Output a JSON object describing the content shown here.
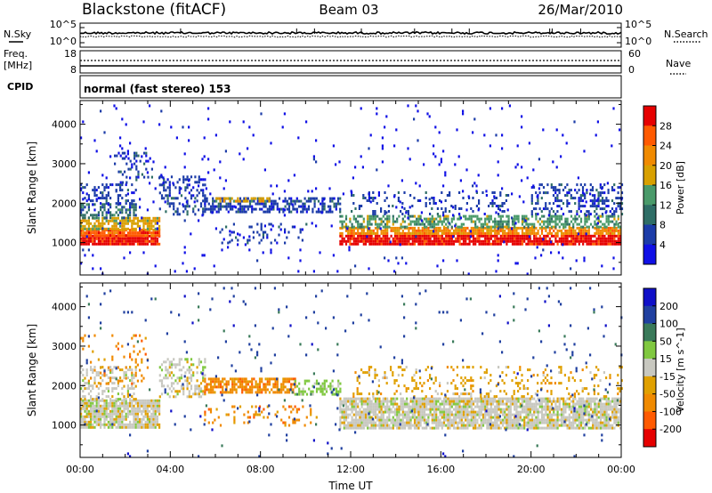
{
  "header": {
    "title": "Blackstone (fitACF)",
    "beam": "Beam 03",
    "date": "26/Mar/2010"
  },
  "status_panels": {
    "nsky": {
      "label": "N.Sky",
      "ticks": [
        "10^5",
        "10^0"
      ]
    },
    "nsearch": {
      "label": "N.Search",
      "ticks": [
        "10^5",
        "10^0"
      ]
    },
    "freq": {
      "label_line1": "Freq.",
      "label_line2": "[MHz]",
      "ticks": [
        "18",
        "8"
      ]
    },
    "nave": {
      "label": "Nave",
      "ticks": [
        "60",
        "0"
      ]
    },
    "cpid": {
      "label": "CPID",
      "value": "normal (fast stereo) 153"
    }
  },
  "chart_data": [
    {
      "type": "heatmap",
      "title": "",
      "xlabel": "Time UT",
      "ylabel": "Slant Range [km]",
      "x_ticks": [
        "00:00",
        "04:00",
        "08:00",
        "12:00",
        "16:00",
        "20:00",
        "00:00"
      ],
      "x_range_hours": [
        0,
        24
      ],
      "y_ticks": [
        1000,
        2000,
        3000,
        4000
      ],
      "ylim": [
        180,
        4600
      ],
      "colorbar": {
        "label": "Power [dB]",
        "ticks": [
          "28",
          "24",
          "20",
          "16",
          "12",
          "8",
          "4"
        ],
        "colors": [
          "#1010e6",
          "#1c3ca8",
          "#2f6e66",
          "#4a9a6a",
          "#d8a000",
          "#f08a00",
          "#ff5a00",
          "#e60000"
        ]
      },
      "bands": [
        {
          "t0": 0.0,
          "t1": 3.5,
          "r0": 950,
          "r1": 1200,
          "level": 7,
          "density": 0.95
        },
        {
          "t0": 0.0,
          "t1": 3.5,
          "r0": 1200,
          "r1": 1350,
          "level": 6,
          "density": 0.9
        },
        {
          "t0": 0.0,
          "t1": 3.5,
          "r0": 1350,
          "r1": 1650,
          "level": 4,
          "density": 0.75
        },
        {
          "t0": 0.0,
          "t1": 2.5,
          "r0": 1650,
          "r1": 2000,
          "level": 2,
          "density": 0.45
        },
        {
          "t0": 0.0,
          "t1": 2.5,
          "r0": 2000,
          "r1": 2500,
          "level": 1,
          "density": 0.35
        },
        {
          "t0": 1.5,
          "t1": 3.2,
          "r0": 2500,
          "r1": 3300,
          "level": 1,
          "density": 0.2
        },
        {
          "t0": 3.5,
          "t1": 5.5,
          "r0": 1700,
          "r1": 2700,
          "level": 1,
          "density": 0.35
        },
        {
          "t0": 5.5,
          "t1": 11.5,
          "r0": 1800,
          "r1": 2150,
          "level": 1,
          "density": 0.55
        },
        {
          "t0": 6.0,
          "t1": 8.5,
          "r0": 2050,
          "r1": 2150,
          "level": 4,
          "density": 0.6
        },
        {
          "t0": 6.0,
          "t1": 10.0,
          "r0": 1000,
          "r1": 1500,
          "level": 1,
          "density": 0.15
        },
        {
          "t0": 11.5,
          "t1": 24.0,
          "r0": 950,
          "r1": 1200,
          "level": 7,
          "density": 0.9
        },
        {
          "t0": 11.5,
          "t1": 24.0,
          "r0": 1200,
          "r1": 1400,
          "level": 5,
          "density": 0.8
        },
        {
          "t0": 11.5,
          "t1": 24.0,
          "r0": 1400,
          "r1": 1700,
          "level": 3,
          "density": 0.55
        },
        {
          "t0": 12.0,
          "t1": 19.0,
          "r0": 1700,
          "r1": 2300,
          "level": 1,
          "density": 0.2
        },
        {
          "t0": 20.0,
          "t1": 24.0,
          "r0": 1700,
          "r1": 2500,
          "level": 1,
          "density": 0.35
        },
        {
          "t0": 0.0,
          "t1": 24.0,
          "r0": 200,
          "r1": 4500,
          "level": 0,
          "density": 0.02
        }
      ]
    },
    {
      "type": "heatmap",
      "title": "",
      "xlabel": "Time UT",
      "ylabel": "Slant Range [km]",
      "x_ticks": [
        "00:00",
        "04:00",
        "08:00",
        "12:00",
        "16:00",
        "20:00",
        "00:00"
      ],
      "x_range_hours": [
        0,
        24
      ],
      "y_ticks": [
        1000,
        2000,
        3000,
        4000
      ],
      "ylim": [
        180,
        4600
      ],
      "colorbar": {
        "label": "Velocity [m s^-1]",
        "ticks": [
          "200",
          "100",
          "50",
          "15",
          "-15",
          "-50",
          "-100",
          "-200"
        ],
        "colors": [
          "#e60000",
          "#ff5a00",
          "#f08a00",
          "#e0a000",
          "#c8c8c0",
          "#80c840",
          "#3a7a5a",
          "#2040a0",
          "#1010c8"
        ]
      },
      "bands": [
        {
          "t0": 0.0,
          "t1": 3.5,
          "r0": 950,
          "r1": 1650,
          "level": 4,
          "density": 0.85
        },
        {
          "t0": 0.0,
          "t1": 2.5,
          "r0": 1650,
          "r1": 2500,
          "level": 4,
          "density": 0.35
        },
        {
          "t0": 0.0,
          "t1": 3.0,
          "r0": 2000,
          "r1": 3300,
          "level": 2,
          "density": 0.12
        },
        {
          "t0": 3.5,
          "t1": 5.5,
          "r0": 1700,
          "r1": 2700,
          "level": 4,
          "density": 0.4
        },
        {
          "t0": 5.5,
          "t1": 9.5,
          "r0": 1800,
          "r1": 2200,
          "level": 2,
          "density": 0.7
        },
        {
          "t0": 9.5,
          "t1": 11.5,
          "r0": 1800,
          "r1": 2150,
          "level": 5,
          "density": 0.5
        },
        {
          "t0": 5.5,
          "t1": 10.5,
          "r0": 1000,
          "r1": 1500,
          "level": 2,
          "density": 0.15
        },
        {
          "t0": 11.5,
          "t1": 24.0,
          "r0": 950,
          "r1": 1700,
          "level": 4,
          "density": 0.85
        },
        {
          "t0": 12.0,
          "t1": 24.0,
          "r0": 1700,
          "r1": 2500,
          "level": 3,
          "density": 0.15
        },
        {
          "t0": 0.0,
          "t1": 24.0,
          "r0": 200,
          "r1": 4500,
          "level": 7,
          "density": 0.015
        }
      ]
    }
  ]
}
